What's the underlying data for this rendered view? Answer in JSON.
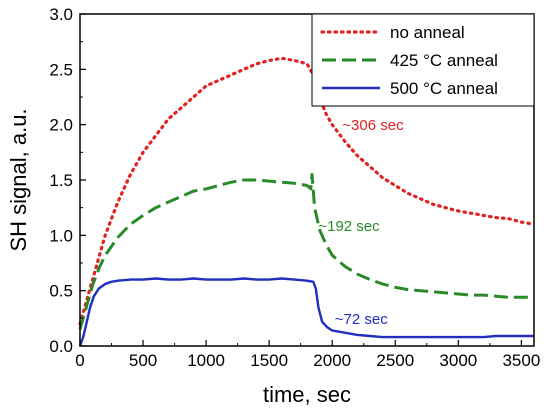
{
  "chart_data": {
    "type": "line",
    "title": "",
    "xlabel": "time, sec",
    "ylabel": "SH signal, a.u.",
    "xlim": [
      0,
      3600
    ],
    "ylim": [
      0,
      3.0
    ],
    "xticks": [
      0,
      500,
      1000,
      1500,
      2000,
      2500,
      3000,
      3500
    ],
    "yticks": [
      0.0,
      0.5,
      1.0,
      1.5,
      2.0,
      2.5,
      3.0
    ],
    "xtick_labels": [
      "0",
      "500",
      "1000",
      "1500",
      "2000",
      "2500",
      "3000",
      "3500"
    ],
    "ytick_labels": [
      "0.0",
      "0.5",
      "1.0",
      "1.5",
      "2.0",
      "2.5",
      "3.0"
    ],
    "grid": false,
    "legend_position": "top-right",
    "series": [
      {
        "name": "no anneal",
        "color": "#e32222",
        "style": "dotted",
        "x": [
          0,
          50,
          100,
          150,
          200,
          250,
          300,
          400,
          500,
          600,
          700,
          800,
          900,
          1000,
          1100,
          1200,
          1300,
          1400,
          1500,
          1600,
          1700,
          1800,
          1850,
          1900,
          1950,
          2000,
          2100,
          2200,
          2300,
          2400,
          2500,
          2600,
          2700,
          2800,
          2900,
          3000,
          3100,
          3200,
          3300,
          3400,
          3500,
          3600
        ],
        "values": [
          0.2,
          0.4,
          0.6,
          0.8,
          1.0,
          1.15,
          1.3,
          1.55,
          1.75,
          1.9,
          2.05,
          2.15,
          2.25,
          2.35,
          2.4,
          2.45,
          2.5,
          2.55,
          2.58,
          2.6,
          2.58,
          2.55,
          2.45,
          2.25,
          2.1,
          2.0,
          1.85,
          1.72,
          1.62,
          1.52,
          1.45,
          1.38,
          1.33,
          1.28,
          1.25,
          1.22,
          1.2,
          1.18,
          1.16,
          1.15,
          1.12,
          1.1
        ]
      },
      {
        "name": "425 °C anneal",
        "color": "#2a8a2a",
        "style": "dashed",
        "x": [
          0,
          50,
          100,
          150,
          200,
          300,
          400,
          500,
          600,
          700,
          800,
          900,
          1000,
          1100,
          1200,
          1300,
          1400,
          1500,
          1600,
          1700,
          1800,
          1830,
          1840,
          1860,
          1900,
          1950,
          2000,
          2100,
          2200,
          2300,
          2400,
          2500,
          2600,
          2700,
          2800,
          2900,
          3000,
          3100,
          3200,
          3300,
          3400,
          3500,
          3600
        ],
        "values": [
          0.15,
          0.35,
          0.55,
          0.7,
          0.82,
          0.98,
          1.1,
          1.18,
          1.25,
          1.3,
          1.35,
          1.4,
          1.42,
          1.45,
          1.48,
          1.5,
          1.5,
          1.49,
          1.48,
          1.47,
          1.45,
          1.42,
          1.55,
          1.25,
          1.05,
          0.92,
          0.82,
          0.72,
          0.65,
          0.6,
          0.56,
          0.53,
          0.51,
          0.5,
          0.49,
          0.48,
          0.47,
          0.46,
          0.46,
          0.45,
          0.44,
          0.44,
          0.44
        ]
      },
      {
        "name": "500 °C anneal",
        "color": "#1f2fbf",
        "style": "solid",
        "x": [
          0,
          25,
          50,
          80,
          110,
          150,
          200,
          250,
          300,
          400,
          500,
          600,
          700,
          800,
          900,
          1000,
          1100,
          1200,
          1300,
          1400,
          1500,
          1600,
          1700,
          1800,
          1850,
          1870,
          1890,
          1920,
          1960,
          2000,
          2100,
          2200,
          2300,
          2400,
          2500,
          2600,
          2700,
          2800,
          2900,
          3000,
          3100,
          3200,
          3300,
          3400,
          3500,
          3600
        ],
        "values": [
          0.0,
          0.08,
          0.2,
          0.35,
          0.45,
          0.52,
          0.56,
          0.58,
          0.59,
          0.6,
          0.6,
          0.61,
          0.6,
          0.6,
          0.61,
          0.6,
          0.6,
          0.6,
          0.61,
          0.6,
          0.6,
          0.61,
          0.6,
          0.59,
          0.58,
          0.52,
          0.35,
          0.22,
          0.17,
          0.14,
          0.12,
          0.1,
          0.09,
          0.08,
          0.08,
          0.08,
          0.08,
          0.08,
          0.08,
          0.08,
          0.08,
          0.08,
          0.09,
          0.09,
          0.09,
          0.09
        ]
      }
    ],
    "annotations": [
      {
        "text": "~306 sec",
        "x": 2080,
        "y": 1.95,
        "color": "#e32222"
      },
      {
        "text": "~192 sec",
        "x": 1890,
        "y": 1.04,
        "color": "#2a8a2a"
      },
      {
        "text": "~72 sec",
        "x": 2020,
        "y": 0.2,
        "color": "#1f2fbf"
      }
    ]
  }
}
